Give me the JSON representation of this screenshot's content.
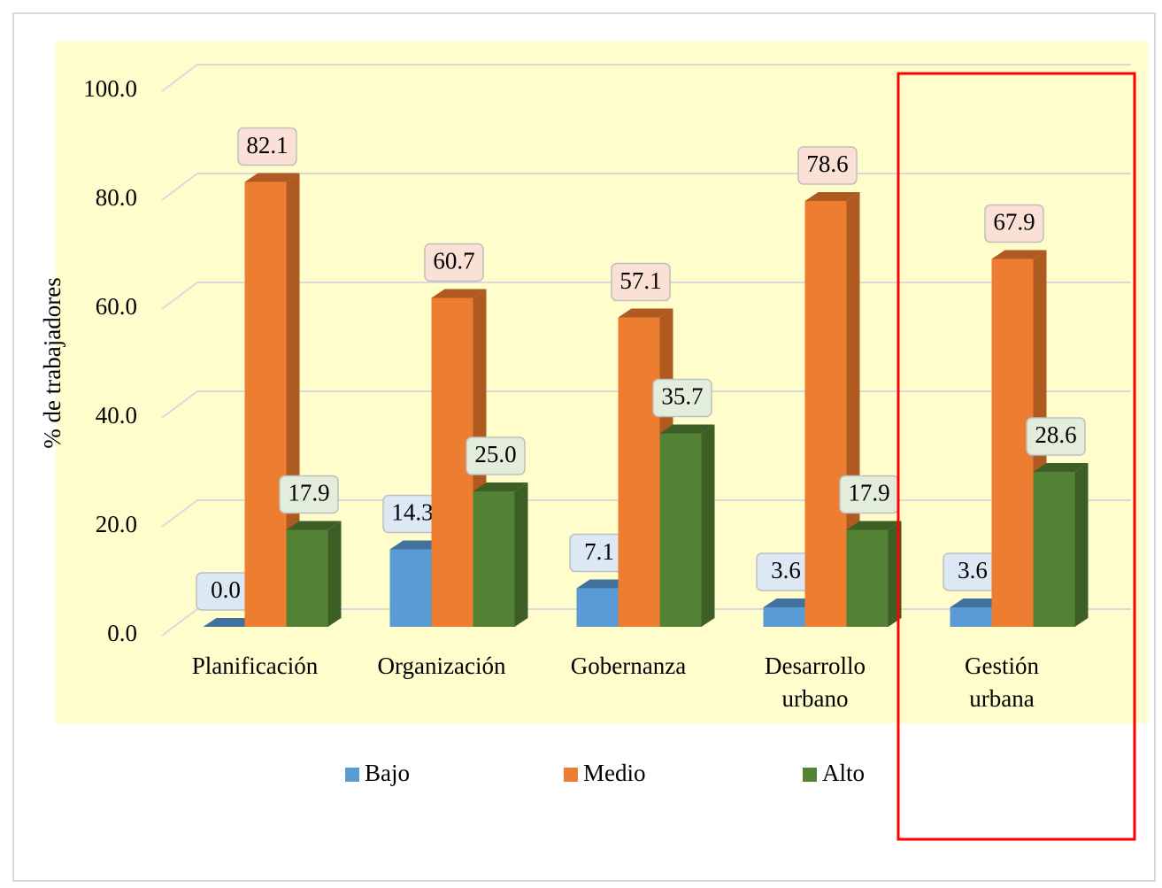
{
  "chart_data": {
    "type": "bar3d",
    "y_axis_label": "% de trabajadores",
    "categories": [
      "Planificación",
      "Organización",
      "Gobernanza",
      "Desarrollo\nurbano",
      "Gestión\nurbana"
    ],
    "series": [
      {
        "name": "Bajo",
        "color": "#5b9bd5",
        "values": [
          0.0,
          14.3,
          7.1,
          3.6,
          3.6
        ],
        "value_labels": [
          "0.0",
          "14.3",
          "7.1",
          "3.6",
          "3.6"
        ]
      },
      {
        "name": "Medio",
        "color": "#ed7d31",
        "values": [
          82.1,
          60.7,
          57.1,
          78.6,
          67.9
        ],
        "value_labels": [
          "82.1",
          "60.7",
          "57.1",
          "78.6",
          "67.9"
        ]
      },
      {
        "name": "Alto",
        "color": "#548235",
        "values": [
          17.9,
          25.0,
          35.7,
          17.9,
          28.6
        ],
        "value_labels": [
          "17.9",
          "25.0",
          "35.7",
          "17.9",
          "28.6"
        ]
      }
    ],
    "ylim": [
      0,
      100
    ],
    "yticks": [
      {
        "value": 0,
        "label": "0.0"
      },
      {
        "value": 20,
        "label": "20.0"
      },
      {
        "value": 40,
        "label": "40.0"
      },
      {
        "value": 60,
        "label": "60.0"
      },
      {
        "value": 80,
        "label": "80.0"
      },
      {
        "value": 100,
        "label": "100.0"
      }
    ],
    "grid": true,
    "legend": "bottom"
  }
}
